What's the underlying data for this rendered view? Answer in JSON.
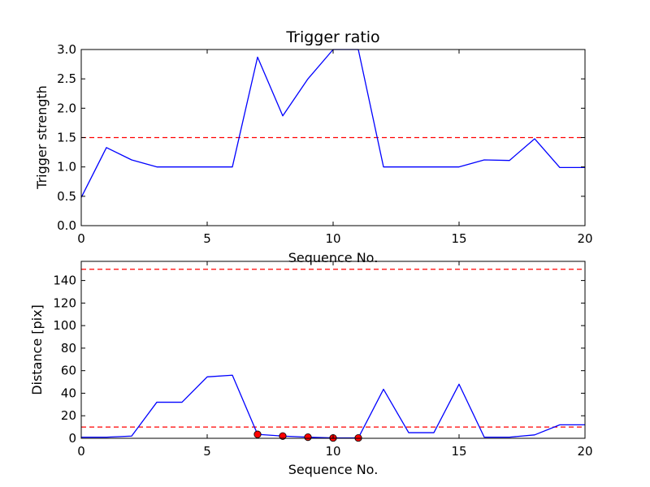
{
  "chart_data": [
    {
      "type": "line",
      "title": "Trigger ratio",
      "xlabel": "Sequence No.",
      "ylabel": "Trigger strength",
      "xlim": [
        0,
        20
      ],
      "ylim": [
        0,
        3.0
      ],
      "xticks": [
        "0",
        "5",
        "10",
        "15",
        "20"
      ],
      "yticks": [
        "0.0",
        "0.5",
        "1.0",
        "1.5",
        "2.0",
        "2.5",
        "3.0"
      ],
      "grid": false,
      "series": [
        {
          "color": "#0000ff",
          "x": [
            0,
            1,
            2,
            3,
            4,
            5,
            6,
            7,
            8,
            9,
            10,
            11,
            12,
            13,
            14,
            15,
            16,
            17,
            18,
            19,
            20
          ],
          "y": [
            0.48,
            1.33,
            1.12,
            1.0,
            1.0,
            1.0,
            1.0,
            2.87,
            1.87,
            2.5,
            3.0,
            3.0,
            1.0,
            1.0,
            1.0,
            1.0,
            1.12,
            1.11,
            1.48,
            0.99,
            0.99
          ]
        }
      ],
      "threshold_lines": [
        {
          "y": 1.5,
          "color": "#ff0000",
          "style": "dashed"
        }
      ]
    },
    {
      "type": "line",
      "title": "",
      "xlabel": "Sequence No.",
      "ylabel": "Distance [pix]",
      "xlim": [
        0,
        20
      ],
      "ylim": [
        0,
        157
      ],
      "xticks": [
        "0",
        "5",
        "10",
        "15",
        "20"
      ],
      "yticks": [
        "0",
        "20",
        "40",
        "60",
        "80",
        "100",
        "120",
        "140"
      ],
      "grid": false,
      "series": [
        {
          "color": "#0000ff",
          "x": [
            0,
            1,
            2,
            3,
            4,
            5,
            6,
            7,
            8,
            9,
            10,
            11,
            12,
            13,
            14,
            15,
            16,
            17,
            18,
            19,
            20
          ],
          "y": [
            1,
            1,
            2,
            32,
            32,
            54.5,
            56,
            3.5,
            2,
            1,
            0.3,
            0.3,
            43.5,
            5,
            5,
            48,
            1,
            1,
            3,
            12,
            12
          ]
        }
      ],
      "markers": {
        "color": "#ff0000",
        "x": [
          7,
          8,
          9,
          10,
          11
        ],
        "y": [
          3.5,
          2,
          1,
          0.3,
          0.3
        ]
      },
      "threshold_lines": [
        {
          "y": 150,
          "color": "#ff0000",
          "style": "dashed"
        },
        {
          "y": 10,
          "color": "#ff0000",
          "style": "dashed"
        }
      ]
    }
  ]
}
